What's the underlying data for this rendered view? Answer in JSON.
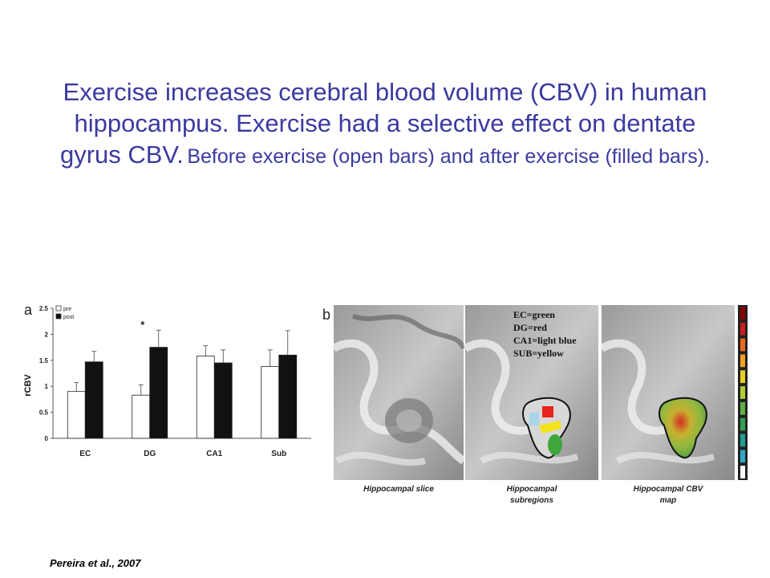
{
  "title": {
    "main": "Exercise increases cerebral blood volume (CBV) in human hippocampus. Exercise had a selective effect on dentate gyrus CBV.",
    "sub": "Before exercise (open bars) and after exercise (filled bars)."
  },
  "chart_data": {
    "type": "bar",
    "panel_label": "a",
    "categories": [
      "EC",
      "DG",
      "CA1",
      "Sub"
    ],
    "series": [
      {
        "name": "pre",
        "values": [
          0.9,
          0.83,
          1.58,
          1.38
        ],
        "errors": [
          0.17,
          0.2,
          0.2,
          0.32
        ],
        "color": "#ffffff"
      },
      {
        "name": "post",
        "values": [
          1.47,
          1.75,
          1.45,
          1.6
        ],
        "errors": [
          0.2,
          0.33,
          0.25,
          0.47
        ],
        "color": "#111111"
      }
    ],
    "ylabel": "rCBV",
    "ylim": [
      0,
      2.5
    ],
    "yticks": [
      "0",
      "0.5",
      "1",
      "1.5",
      "2",
      "2.5"
    ],
    "annotation": "*",
    "annotation_category": "DG",
    "legend_position": "top-left"
  },
  "panel_b": {
    "label": "b",
    "legend_lines": [
      "EC=green",
      "DG=red",
      "CA1=light blue",
      "SUB=yellow"
    ],
    "captions": [
      [
        "Hippocampal slice"
      ],
      [
        "Hippocampal",
        "subregions"
      ],
      [
        "Hippocampal CBV",
        "map"
      ]
    ],
    "region_colors": {
      "EC": "#3fa63a",
      "DG": "#e8231c",
      "CA1": "#a9d5e8",
      "SUB": "#f1e31c"
    },
    "colorbar": [
      "#8b0000",
      "#c81e1e",
      "#e86a1a",
      "#f0a020",
      "#e8d020",
      "#b0d030",
      "#60b040",
      "#30a050",
      "#20a090",
      "#30a8c8",
      "#ffffff"
    ]
  },
  "citation": "Pereira et al., 2007"
}
